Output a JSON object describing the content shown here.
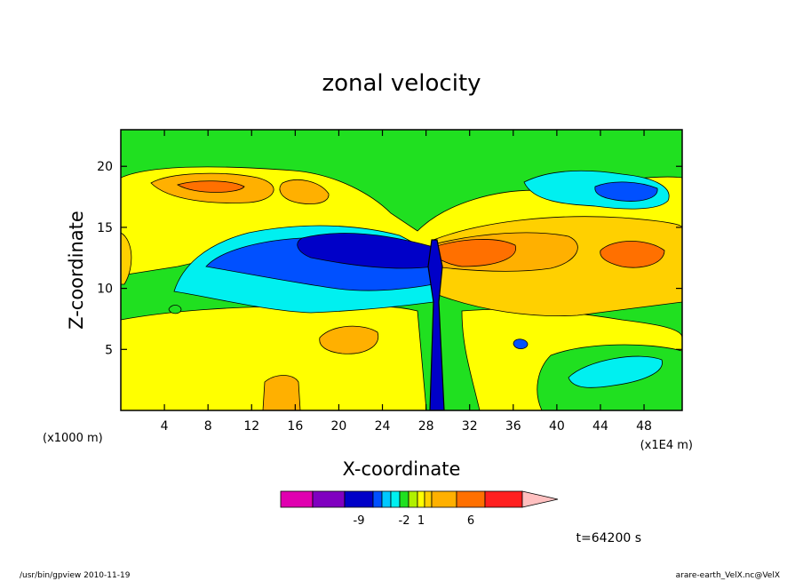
{
  "chart_data": {
    "type": "heatmap",
    "title": "zonal velocity",
    "xlabel": "X-coordinate",
    "ylabel": "Z-coordinate",
    "x_unit_left": "(x1000 m)",
    "x_unit_right": "(x1E4 m)",
    "xlim": [
      0,
      51.5
    ],
    "ylim": [
      0,
      23
    ],
    "x_ticks": [
      4,
      8,
      12,
      16,
      20,
      24,
      28,
      32,
      36,
      40,
      44,
      48
    ],
    "y_ticks": [
      5,
      10,
      15,
      20
    ],
    "colorbar": {
      "colors": [
        "#e000b0",
        "#8000c0",
        "#0000c8",
        "#0050ff",
        "#00c8ff",
        "#00f0f0",
        "#20e020",
        "#b0f000",
        "#ffff00",
        "#ffd000",
        "#ffb000",
        "#ff7000",
        "#ff2020",
        "#ff8080",
        "#ffc0c0"
      ],
      "tick_labels": [
        {
          "label": "-9",
          "boundary": 2
        },
        {
          "label": "-2",
          "boundary": 6
        },
        {
          "label": "1",
          "boundary": 8
        },
        {
          "label": "6",
          "boundary": 11
        }
      ]
    },
    "time_label": "t=64200 s"
  },
  "footer": {
    "left": "/usr/bin/gpview   2010-11-19",
    "right": "arare-earth_VelX.nc@VelX"
  },
  "colors": {
    "background_field": "#20e020",
    "contour_line": "#000000"
  }
}
